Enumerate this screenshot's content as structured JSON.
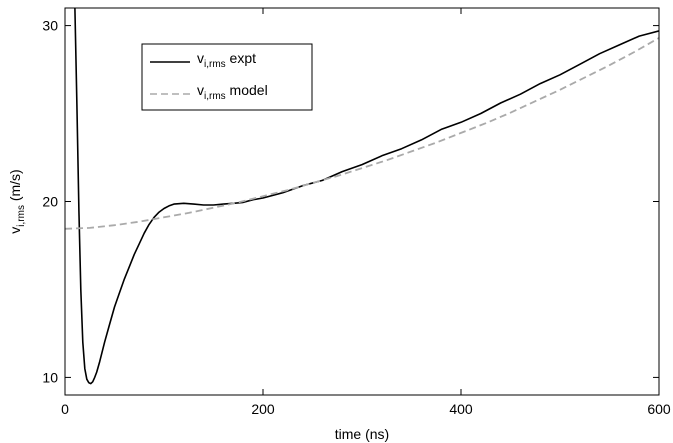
{
  "chart_data": {
    "type": "line",
    "xlabel": "time (ns)",
    "ylabel": {
      "base": "v",
      "subscript": "i,rms",
      "unit": " (m/s)"
    },
    "xlim": [
      0,
      600
    ],
    "ylim": [
      9,
      31
    ],
    "xticks": [
      0,
      200,
      400,
      600
    ],
    "yticks": [
      10,
      20,
      30
    ],
    "grid": false,
    "legend_position": "top-left",
    "series": [
      {
        "name": "v_i,rms expt",
        "label_base": "v",
        "label_sub": "i,rms",
        "label_suffix": " expt",
        "color": "#000000",
        "dash": "solid",
        "x": [
          10,
          12,
          14,
          16,
          18,
          20,
          22,
          24,
          26,
          28,
          30,
          32,
          35,
          40,
          45,
          50,
          55,
          60,
          65,
          70,
          75,
          80,
          85,
          90,
          95,
          100,
          105,
          110,
          120,
          130,
          140,
          150,
          160,
          170,
          180,
          190,
          200,
          220,
          240,
          260,
          280,
          300,
          320,
          340,
          360,
          380,
          400,
          420,
          440,
          460,
          480,
          500,
          520,
          540,
          560,
          580,
          600
        ],
        "y": [
          31,
          25.5,
          19.5,
          15.0,
          12.0,
          10.5,
          9.9,
          9.7,
          9.65,
          9.75,
          10.0,
          10.3,
          10.9,
          12.0,
          13.0,
          14.0,
          14.8,
          15.6,
          16.3,
          17.0,
          17.6,
          18.2,
          18.7,
          19.1,
          19.4,
          19.6,
          19.75,
          19.85,
          19.9,
          19.85,
          19.8,
          19.8,
          19.85,
          19.9,
          19.95,
          20.1,
          20.2,
          20.5,
          20.9,
          21.2,
          21.7,
          22.1,
          22.6,
          23.0,
          23.5,
          24.1,
          24.5,
          25.0,
          25.6,
          26.1,
          26.7,
          27.2,
          27.8,
          28.4,
          28.9,
          29.4,
          29.7
        ]
      },
      {
        "name": "v_i,rms model",
        "label_base": "v",
        "label_sub": "i,rms",
        "label_suffix": " model",
        "color": "#aaaaaa",
        "dash": "dashed",
        "x": [
          0,
          25,
          50,
          75,
          100,
          125,
          150,
          175,
          200,
          225,
          250,
          275,
          300,
          325,
          350,
          375,
          400,
          425,
          450,
          475,
          500,
          525,
          550,
          575,
          600
        ],
        "y": [
          18.45,
          18.5,
          18.65,
          18.85,
          19.1,
          19.35,
          19.65,
          19.95,
          20.3,
          20.65,
          21.05,
          21.45,
          21.9,
          22.35,
          22.85,
          23.35,
          23.9,
          24.45,
          25.05,
          25.7,
          26.35,
          27.05,
          27.75,
          28.5,
          29.3
        ]
      }
    ]
  }
}
